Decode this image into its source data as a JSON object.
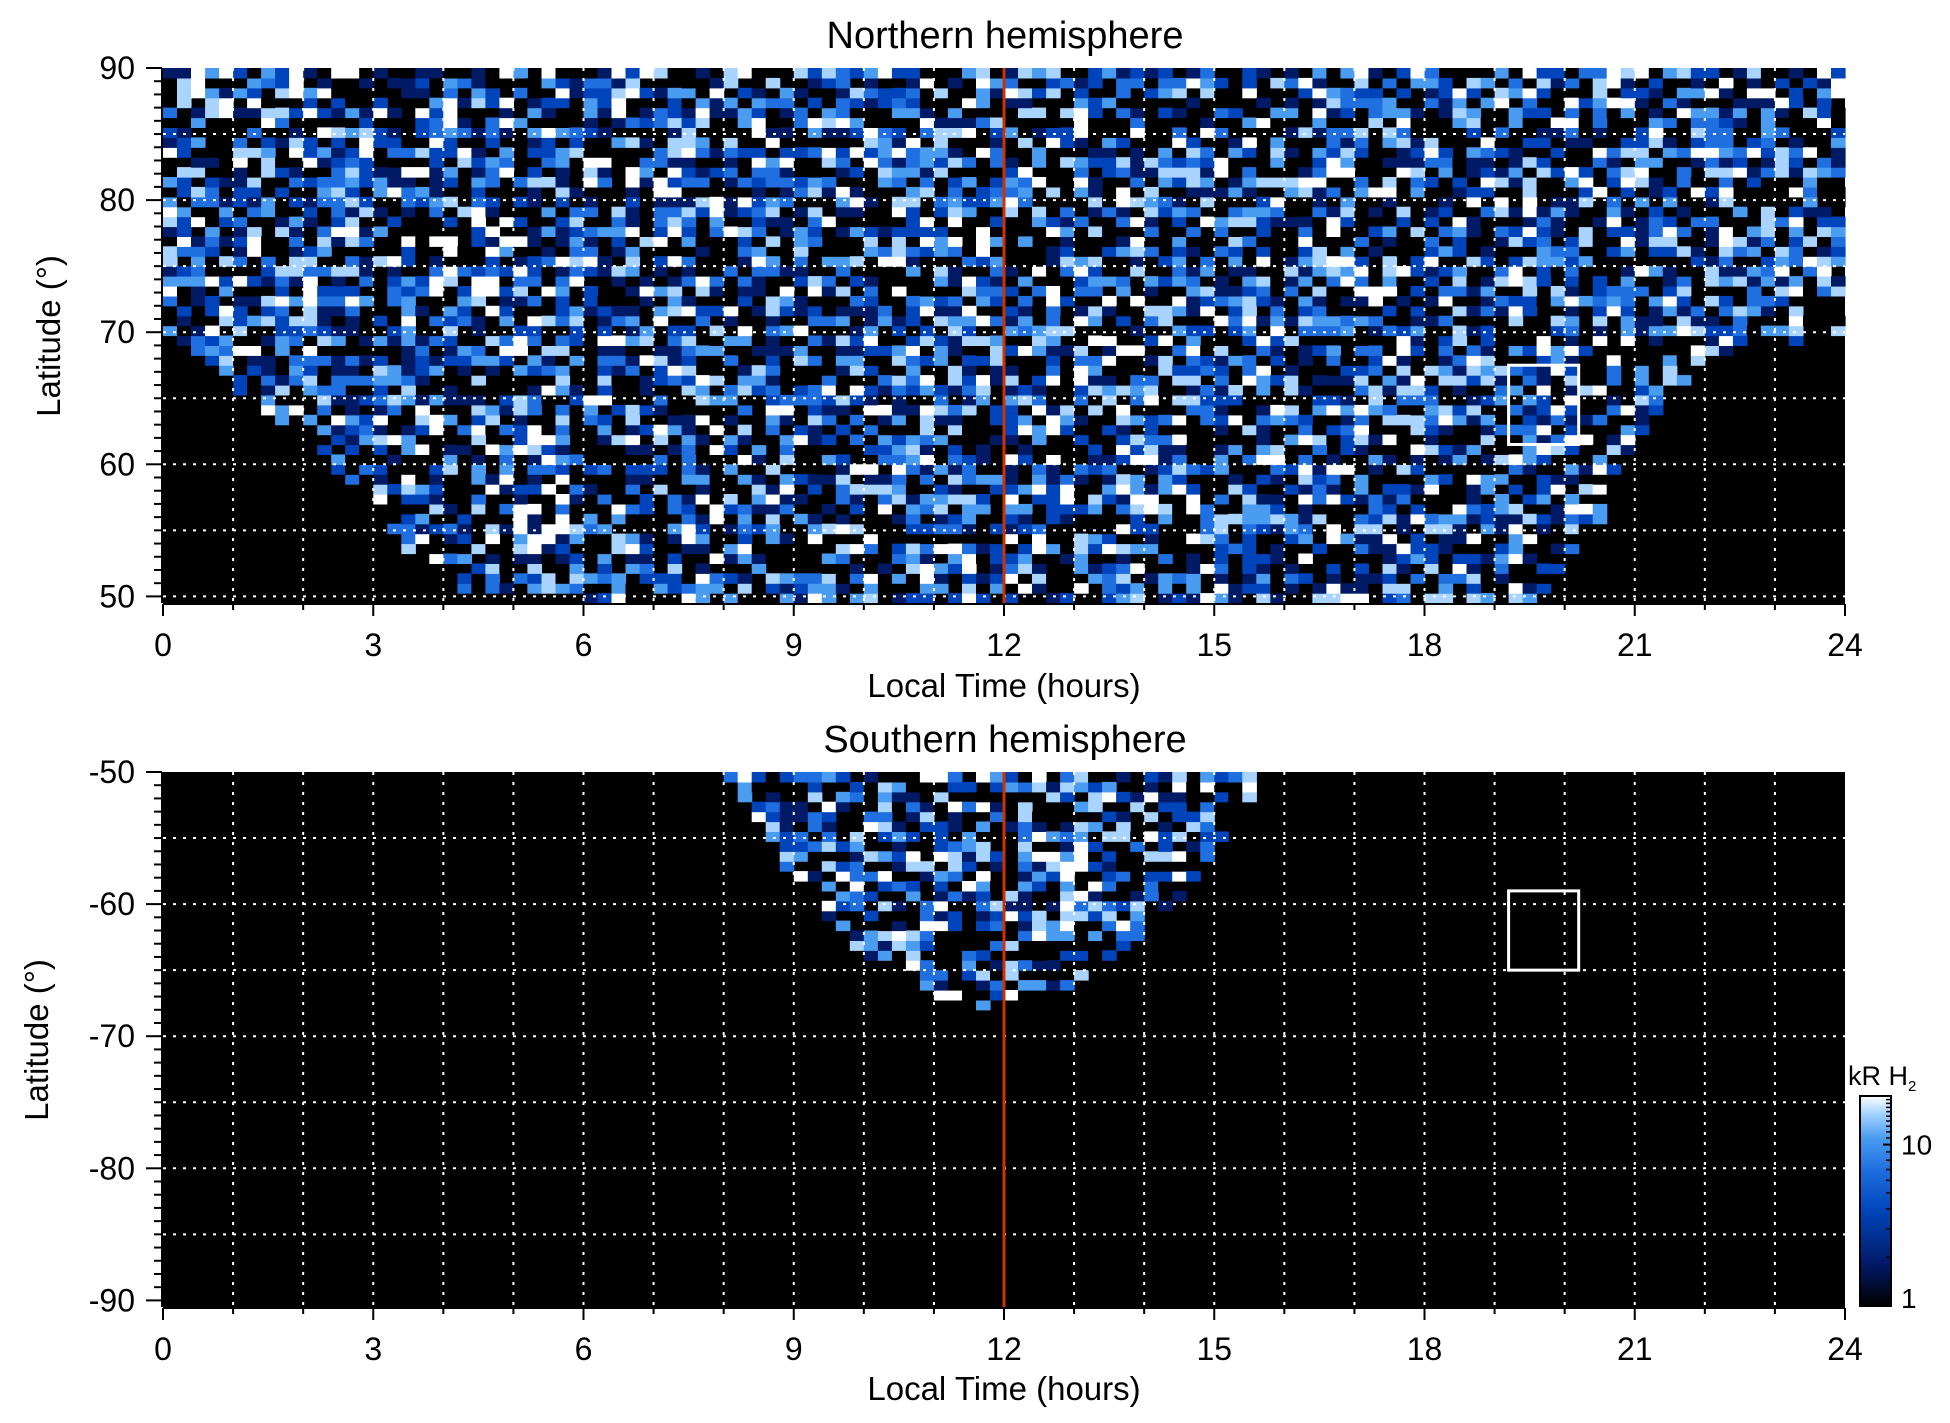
{
  "colors": {
    "background": "#ffffff",
    "plot_background": "#000000",
    "grid": "#ffffff",
    "noon_line": "#cc3300",
    "box": "#ffffff",
    "colormap": [
      "#000000",
      "#001a66",
      "#0044bb",
      "#1f6fe0",
      "#4a9cf0",
      "#a8d4ff",
      "#ffffff"
    ]
  },
  "chart_data": [
    {
      "type": "heatmap",
      "title": "Northern hemisphere",
      "xlabel": "Local Time (hours)",
      "ylabel": "Latitude (°)",
      "xlim": [
        0,
        24
      ],
      "ylim": [
        49.5,
        90
      ],
      "xticks": [
        0,
        3,
        6,
        9,
        12,
        15,
        18,
        21,
        24
      ],
      "xtick_labels": [
        "0",
        "3",
        "6",
        "9",
        "12",
        "15",
        "18",
        "21",
        "24"
      ],
      "yticks": [
        50,
        60,
        70,
        80,
        90
      ],
      "ytick_labels": [
        "50",
        "60",
        "70",
        "80",
        "90"
      ],
      "grid": true,
      "grid_x_step": 1,
      "grid_y_step": 5,
      "noon_line_x": 12,
      "box": {
        "x": [
          19.2,
          20.2
        ],
        "y": [
          61.5,
          67.5
        ]
      },
      "coverage_lat_min": [
        [
          0,
          70
        ],
        [
          1,
          66
        ],
        [
          2,
          62
        ],
        [
          3,
          57
        ],
        [
          4,
          50
        ],
        [
          12,
          49.5
        ],
        [
          19.5,
          49.5
        ],
        [
          20.5,
          55
        ],
        [
          21,
          62
        ],
        [
          22,
          68
        ],
        [
          24,
          70
        ]
      ]
    },
    {
      "type": "heatmap",
      "title": "Southern hemisphere",
      "xlabel": "Local Time (hours)",
      "ylabel": "Latitude (°)",
      "xlim": [
        0,
        24
      ],
      "ylim": [
        -90.5,
        -50
      ],
      "xticks": [
        0,
        3,
        6,
        9,
        12,
        15,
        18,
        21,
        24
      ],
      "xtick_labels": [
        "0",
        "3",
        "6",
        "9",
        "12",
        "15",
        "18",
        "21",
        "24"
      ],
      "yticks": [
        -90,
        -80,
        -70,
        -60,
        -50
      ],
      "ytick_labels": [
        "-90",
        "-80",
        "-70",
        "-60",
        "-50"
      ],
      "grid": true,
      "grid_x_step": 1,
      "grid_y_step": 5,
      "noon_line_x": 12,
      "box": {
        "x": [
          19.2,
          20.2
        ],
        "y": [
          -65,
          -59
        ]
      },
      "coverage_lat_max": [
        [
          8,
          -50
        ],
        [
          9,
          -58
        ],
        [
          10,
          -64
        ],
        [
          11,
          -67
        ],
        [
          12,
          -68
        ],
        [
          13,
          -66
        ],
        [
          14,
          -62
        ],
        [
          15,
          -57
        ],
        [
          15.7,
          -50
        ]
      ]
    }
  ],
  "colorbar": {
    "label_main": "kR H",
    "label_sub": "2",
    "scale": "log",
    "range": [
      1,
      20
    ],
    "ticks": [
      1,
      10
    ],
    "tick_labels": [
      "1",
      "10"
    ]
  }
}
